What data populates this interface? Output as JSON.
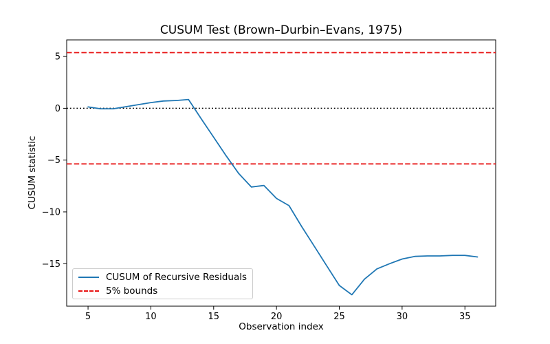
{
  "chart_data": {
    "type": "line",
    "title": "CUSUM Test (Brown–Durbin–Evans, 1975)",
    "xlabel": "Observation index",
    "ylabel": "CUSUM statistic",
    "x": [
      5,
      6,
      7,
      8,
      9,
      10,
      11,
      12,
      13,
      14,
      15,
      16,
      17,
      18,
      19,
      20,
      21,
      22,
      23,
      24,
      25,
      26,
      27,
      28,
      29,
      30,
      31,
      32,
      33,
      34,
      35,
      36
    ],
    "series": [
      {
        "name": "CUSUM of Recursive Residuals",
        "color": "#1f77b4",
        "style": "solid",
        "values": [
          0.13,
          -0.05,
          -0.05,
          0.15,
          0.35,
          0.55,
          0.7,
          0.75,
          0.85,
          -1.0,
          -2.8,
          -4.6,
          -6.3,
          -7.6,
          -7.45,
          -8.7,
          -9.4,
          -11.4,
          -13.3,
          -15.2,
          -17.1,
          -18.0,
          -16.5,
          -15.5,
          -15.0,
          -14.55,
          -14.3,
          -14.25,
          -14.25,
          -14.2,
          -14.2,
          -14.35
        ]
      }
    ],
    "bounds": {
      "label": "5% bounds",
      "color": "#e81313",
      "style": "dashed",
      "upper": 5.37,
      "lower": -5.37
    },
    "zero_line": {
      "value": 0,
      "color": "#000000",
      "style": "dotted"
    },
    "xlim": [
      3.3,
      37.45
    ],
    "ylim": [
      -19.1,
      6.6
    ],
    "xticks": [
      5,
      10,
      15,
      20,
      25,
      30,
      35
    ],
    "yticks": [
      5,
      0,
      -5,
      -10,
      -15
    ],
    "grid": false,
    "legend_position": "lower left",
    "legend_entries": [
      "CUSUM of Recursive Residuals",
      "5% bounds"
    ]
  }
}
